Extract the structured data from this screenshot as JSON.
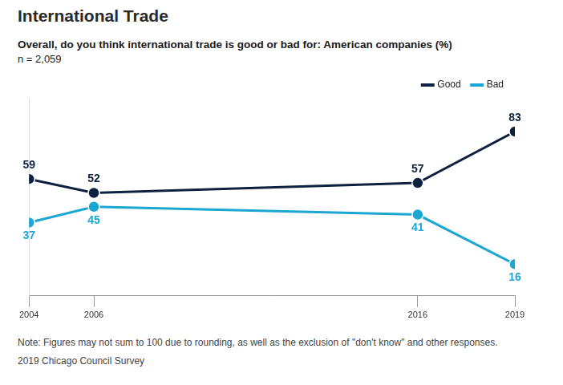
{
  "chart_data": {
    "type": "line",
    "title": "International Trade",
    "subtitle": "Overall, do you think international trade is good or bad for: American companies (%)",
    "sample": "n = 2,059",
    "note": "Note: Figures may not sum to 100 due to rounding, as well as the exclusion of \"don't know\" and other responses.",
    "source": "2019 Chicago Council Survey",
    "x": [
      2004,
      2006,
      2016,
      2019
    ],
    "series": [
      {
        "name": "Good",
        "color": "#0d2240",
        "values": [
          59,
          52,
          57,
          83
        ],
        "marker": "circle"
      },
      {
        "name": "Bad",
        "color": "#1ba6d3",
        "values": [
          37,
          45,
          41,
          16
        ],
        "marker": "circle"
      }
    ],
    "xlim": [
      2004,
      2019
    ],
    "xticks": [
      2004,
      2006,
      2016,
      2019
    ],
    "ylim": [
      0,
      100
    ],
    "tick_labels": "x",
    "grid": false,
    "legend": "top-right",
    "data_labels": true
  }
}
